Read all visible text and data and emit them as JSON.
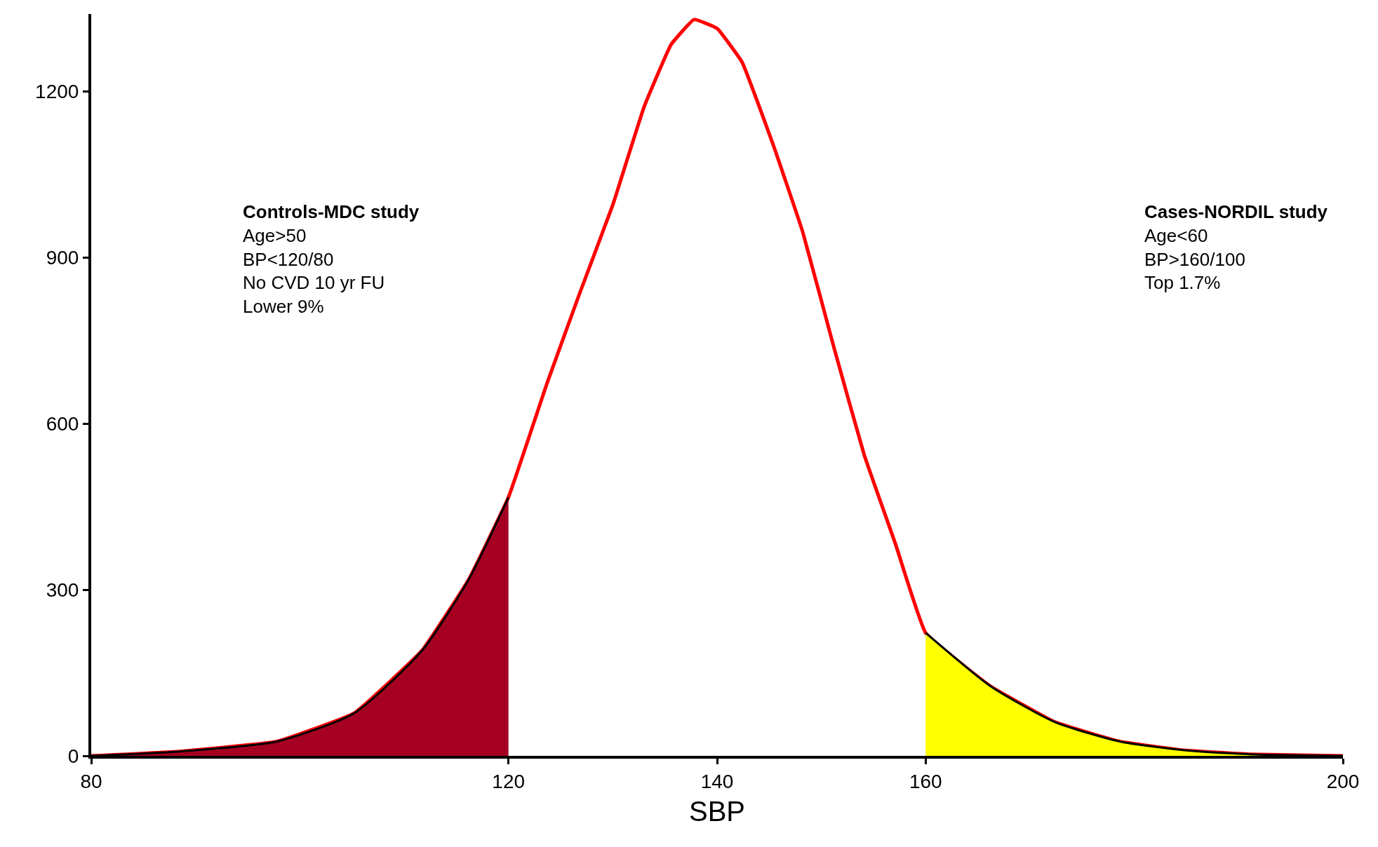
{
  "chart_data": {
    "type": "line",
    "xlabel": "SBP",
    "xlim": [
      80,
      200
    ],
    "ylim": [
      0,
      1340
    ],
    "xticks": [
      80,
      120,
      140,
      160,
      200
    ],
    "yticks": [
      0,
      300,
      600,
      900,
      1200
    ],
    "marker": "none",
    "series": [
      {
        "color": "#ff0000",
        "x": [
          80,
          88.5,
          97.8,
          105.2,
          111.7,
          116.2,
          120,
          123.7,
          126.8,
          130,
          133,
          135.6,
          137.8,
          140,
          142.4,
          145.3,
          148.2,
          151.2,
          154.1,
          157.1,
          160,
          166.2,
          172.4,
          178.6,
          184.8,
          191,
          200
        ],
        "values": [
          0,
          8,
          26,
          77,
          190,
          319,
          467,
          673,
          834,
          995,
          1172,
          1285,
          1330,
          1314,
          1253,
          1108,
          947,
          738,
          544,
          383,
          222,
          126,
          61,
          26,
          10,
          3,
          0
        ]
      },
      {
        "type": "area",
        "color": "#a50021",
        "x": [
          80,
          88.5,
          97.8,
          105.2,
          111.7,
          116.2,
          120
        ],
        "values": [
          0,
          8,
          26,
          77,
          190,
          319,
          467
        ]
      },
      {
        "type": "area",
        "color": "#ffff00",
        "x": [
          160,
          166.2,
          172.4,
          178.6,
          184.8,
          191,
          200
        ],
        "values": [
          222,
          126,
          61,
          26,
          10,
          3,
          0
        ]
      }
    ],
    "annotations": [
      "Controls-MDC study\nAge>50\nBP<120/80\nNo CVD 10 yr FU\nLower 9%",
      "Cases-NORDIL study\nAge<60\nBP>160/100\nTop 1.7%"
    ]
  }
}
